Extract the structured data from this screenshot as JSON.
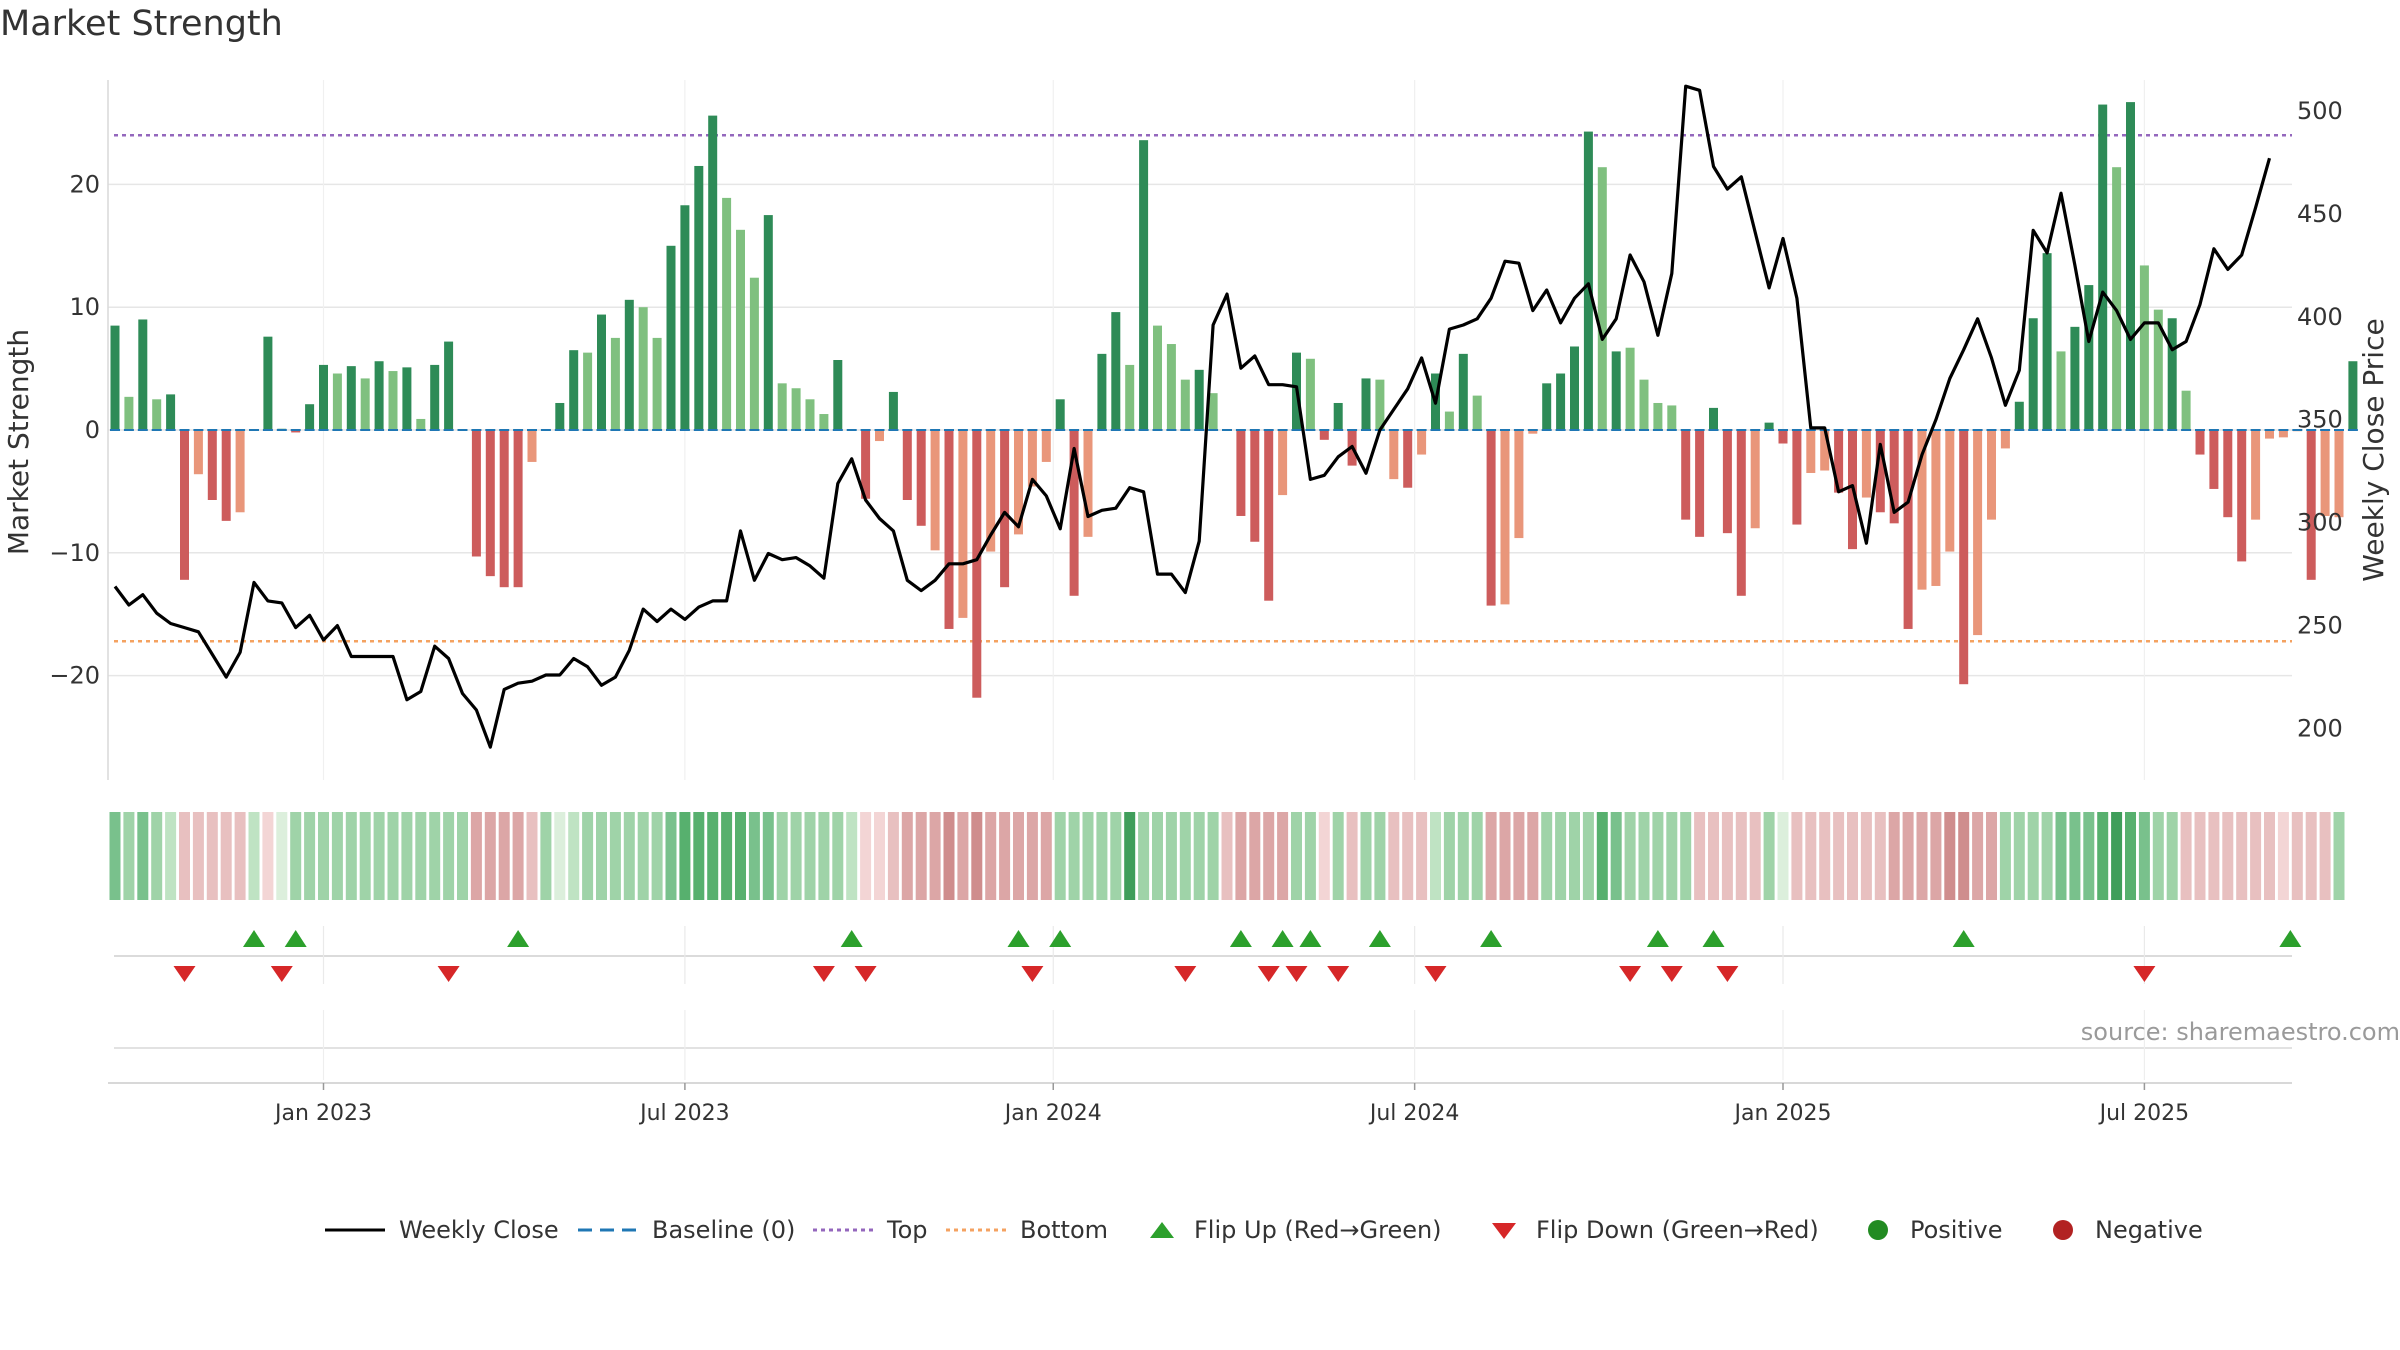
{
  "chart_data": {
    "type": "bar",
    "title": "Market Strength",
    "ylabel": "Market Strength",
    "y2label": "Weekly Close Price",
    "ylim": [
      -28.5,
      28.5
    ],
    "y2lim": [
      175,
      515
    ],
    "yticks": [
      -20,
      -10,
      0,
      10,
      20
    ],
    "y2ticks": [
      200,
      250,
      300,
      350,
      400,
      450,
      500
    ],
    "xtick_labels": [
      "Jan 2023",
      "Jul 2023",
      "Jan 2024",
      "Jul 2024",
      "Jan 2025",
      "Jul 2025"
    ],
    "xtick_weeks": [
      15,
      41,
      67.5,
      93.5,
      120,
      146
    ],
    "grid": true,
    "top_line": 24,
    "bottom_line": -17.2,
    "baseline": 0,
    "strength": [
      8.5,
      2.7,
      9,
      2.5,
      2.9,
      -12.2,
      -3.6,
      -5.7,
      -7.4,
      -6.7,
      0,
      7.6,
      0.1,
      -0.2,
      2.1,
      5.3,
      4.6,
      5.2,
      4.2,
      5.6,
      4.8,
      5.1,
      0.9,
      5.3,
      7.2,
      0,
      -10.3,
      -11.9,
      -12.8,
      -12.8,
      -2.6,
      0,
      2.2,
      6.5,
      6.3,
      9.4,
      7.5,
      10.6,
      10,
      7.5,
      15,
      18.3,
      21.5,
      25.6,
      18.9,
      16.3,
      12.4,
      17.5,
      3.8,
      3.4,
      2.5,
      1.3,
      5.7,
      0,
      -5.6,
      -0.9,
      3.1,
      -5.7,
      -7.8,
      -9.8,
      -16.2,
      -15.3,
      -21.8,
      -9.9,
      -12.8,
      -8.5,
      -4.6,
      -2.6,
      2.5,
      -13.5,
      -8.7,
      6.2,
      9.6,
      5.3,
      23.6,
      8.5,
      7,
      4.1,
      4.9,
      3,
      0,
      -7,
      -9.1,
      -13.9,
      -5.3,
      6.3,
      5.8,
      -0.8,
      2.2,
      -2.9,
      4.2,
      4.1,
      -4,
      -4.7,
      -2,
      4.6,
      1.5,
      6.2,
      2.8,
      -14.3,
      -14.2,
      -8.8,
      -0.3,
      3.8,
      4.6,
      6.8,
      24.3,
      21.4,
      6.4,
      6.7,
      4.1,
      2.2,
      2,
      -7.3,
      -8.7,
      1.8,
      -8.4,
      -13.5,
      -8,
      0.6,
      -1.1,
      -7.7,
      -3.5,
      -3.3,
      -5.1,
      -9.7,
      -5.5,
      -6.7,
      -7.6,
      -16.2,
      -13,
      -12.7,
      -9.9,
      -20.7,
      -16.7,
      -7.3,
      -1.5,
      2.3,
      9.1,
      14.4,
      6.4,
      8.4,
      11.8,
      26.5,
      21.4,
      26.7,
      13.4,
      9.8,
      9.1,
      3.2,
      -2,
      -4.8,
      -7.1,
      -10.7,
      -7.3,
      -0.7,
      -0.6,
      -0.1,
      -12.2,
      -7,
      -7.1,
      5.6
    ],
    "bar_shades": [
      2,
      1,
      2,
      1,
      2,
      2,
      1,
      2,
      2,
      1,
      0,
      2,
      0,
      0,
      2,
      2,
      1,
      2,
      1,
      2,
      1,
      2,
      1,
      2,
      2,
      0,
      2,
      2,
      2,
      2,
      1,
      0,
      2,
      2,
      1,
      2,
      1,
      2,
      1,
      1,
      2,
      2,
      2,
      2,
      1,
      1,
      1,
      2,
      1,
      1,
      1,
      1,
      2,
      0,
      2,
      1,
      2,
      2,
      2,
      1,
      2,
      1,
      2,
      1,
      2,
      1,
      1,
      1,
      2,
      2,
      1,
      2,
      2,
      1,
      2,
      1,
      1,
      1,
      2,
      1,
      0,
      2,
      2,
      2,
      1,
      2,
      1,
      2,
      2,
      2,
      2,
      1,
      1,
      2,
      1,
      2,
      1,
      2,
      1,
      2,
      1,
      1,
      1,
      2,
      2,
      2,
      2,
      1,
      2,
      1,
      1,
      1,
      1,
      2,
      2,
      2,
      2,
      2,
      1,
      2,
      2,
      2,
      1,
      1,
      2,
      2,
      1,
      2,
      2,
      2,
      1,
      1,
      1,
      2,
      1,
      1,
      1,
      2,
      2,
      2,
      1,
      2,
      2,
      2,
      1,
      2,
      1,
      1,
      2,
      1,
      2,
      2,
      2,
      2,
      1,
      1,
      1,
      1,
      2,
      1,
      1,
      2
    ],
    "price": [
      269,
      260,
      265,
      256,
      251,
      249,
      247,
      236,
      225,
      237,
      271,
      262,
      261,
      249,
      255,
      243,
      250,
      235,
      235,
      235,
      235,
      214,
      218,
      240,
      234,
      217,
      209,
      191,
      219,
      222,
      223,
      226,
      226,
      234,
      230,
      221,
      225,
      238,
      258,
      252,
      258,
      253,
      259,
      262,
      262,
      296,
      272,
      285,
      282,
      283,
      279,
      273,
      319,
      331,
      311,
      302,
      296,
      272,
      267,
      272,
      280,
      280,
      282,
      294,
      305,
      298,
      321,
      313,
      297,
      336,
      303,
      306,
      307,
      317,
      315,
      275,
      275,
      266,
      291,
      396,
      411,
      375,
      381,
      367,
      367,
      366,
      321,
      323,
      332,
      337,
      324,
      345,
      355,
      365,
      380,
      358,
      394,
      396,
      399,
      409,
      427,
      426,
      403,
      413,
      397,
      409,
      416,
      389,
      399,
      430,
      417,
      391,
      421,
      512,
      510,
      473,
      462,
      468,
      441,
      414,
      438,
      409,
      346,
      346,
      315,
      318,
      290,
      338,
      305,
      310,
      333,
      350,
      370,
      384,
      399,
      380,
      357,
      374,
      442,
      431,
      460,
      425,
      388,
      412,
      403,
      389,
      397,
      397,
      384,
      388,
      406,
      433,
      423,
      430,
      453,
      477
    ],
    "flip_up_weeks": [
      10,
      13,
      29,
      53,
      65,
      68,
      81,
      84,
      86,
      91,
      99,
      111,
      115,
      133,
      156.5
    ],
    "flip_down_weeks": [
      5,
      12,
      24,
      51,
      54,
      66,
      77,
      83,
      85,
      88,
      95,
      109,
      112,
      116,
      146
    ],
    "heat_levels": [
      4,
      3,
      4,
      3,
      2,
      -2,
      -2,
      -2,
      -2,
      -2,
      2,
      -1,
      1,
      3,
      3,
      3,
      3,
      3,
      3,
      3,
      3,
      3,
      3,
      3,
      3,
      3,
      -3,
      -3,
      -3,
      -3,
      -2,
      3,
      1,
      2,
      3,
      3,
      3,
      3,
      3,
      3,
      4,
      5,
      5,
      5,
      5,
      5,
      4,
      4,
      3,
      3,
      3,
      3,
      3,
      2,
      -1,
      -1,
      -2,
      -3,
      -3,
      -3,
      -4,
      -3,
      -4,
      -3,
      -3,
      -3,
      -3,
      -3,
      3,
      3,
      3,
      3,
      3,
      6,
      3,
      3,
      3,
      3,
      3,
      3,
      -2,
      -3,
      -3,
      -3,
      -3,
      3,
      3,
      -1,
      3,
      -2,
      3,
      3,
      -2,
      -2,
      -2,
      2,
      3,
      3,
      3,
      -3,
      -3,
      -3,
      -3,
      3,
      3,
      3,
      3,
      5,
      4,
      3,
      3,
      3,
      3,
      3,
      -2,
      -2,
      -2,
      -2,
      -2,
      3,
      1,
      -2,
      -2,
      -2,
      -2,
      -2,
      -2,
      -2,
      -3,
      -3,
      -3,
      -3,
      -4,
      -4,
      -3,
      -3,
      3,
      3,
      3,
      3,
      4,
      4,
      4,
      5,
      6,
      5,
      4,
      3,
      3,
      -2,
      -2,
      -2,
      -2,
      -2,
      -2,
      -2,
      -1,
      -2,
      -2,
      -2,
      3
    ],
    "legend": [
      "Weekly Close",
      "Baseline (0)",
      "Top",
      "Bottom",
      "Flip Up (Red→Green)",
      "Flip Down (Green→Red)",
      "Positive",
      "Negative"
    ]
  },
  "colors": {
    "pos_bar": [
      "#2e8b57",
      "#7fc07f"
    ],
    "neg_bar": [
      "#cd5c5c",
      "#e9967a"
    ],
    "price_line": "#000000",
    "top_line": "#9467bd",
    "bottom_line": "#f4a261",
    "baseline": "#1f77b4",
    "flip_up": "#2ca02c",
    "flip_down": "#d62728",
    "positive_dot": "#228b22",
    "negative_dot": "#b22222",
    "grid": "#e6e6e6",
    "axis_text": "#333333"
  },
  "source": "source: sharemaestro.com"
}
